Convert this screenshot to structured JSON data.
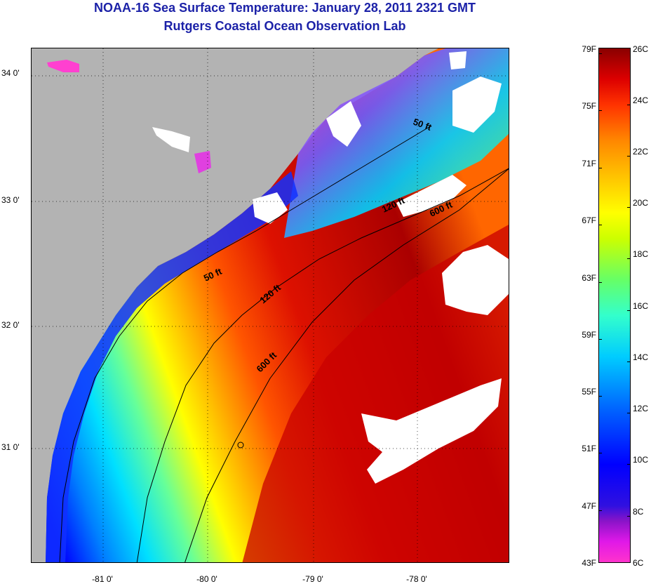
{
  "title": {
    "line1": "NOAA-16 Sea Surface Temperature:  January 28, 2011 2321 GMT",
    "line2": "Rutgers Coastal Ocean Observation Lab"
  },
  "map": {
    "latitude_labels": [
      {
        "label": "34 0'",
        "value": 34.0
      },
      {
        "label": "33 0'",
        "value": 33.0
      },
      {
        "label": "32 0'",
        "value": 32.0
      },
      {
        "label": "31 0'",
        "value": 31.0
      }
    ],
    "longitude_labels": [
      {
        "label": "-81 0'",
        "value": -81.0
      },
      {
        "label": "-80 0'",
        "value": -80.0
      },
      {
        "label": "-79 0'",
        "value": -79.0
      },
      {
        "label": "-78 0'",
        "value": -78.0
      }
    ],
    "contour_labels": [
      "50 ft",
      "120 ft",
      "600 ft",
      "50 ft",
      "120 ft",
      "600 ft"
    ],
    "colors": {
      "land": "#b3b3b3",
      "cloud": "#ffffff",
      "warm": "#d40000",
      "cold": "#0000ff",
      "coldest": "#ff33cc"
    }
  },
  "colorbar": {
    "fahrenheit": [
      "79F",
      "75F",
      "71F",
      "67F",
      "63F",
      "59F",
      "55F",
      "51F",
      "47F",
      "43F"
    ],
    "celsius": [
      "26C",
      "24C",
      "22C",
      "20C",
      "18C",
      "16C",
      "14C",
      "12C",
      "10C",
      "8C",
      "6C"
    ]
  }
}
